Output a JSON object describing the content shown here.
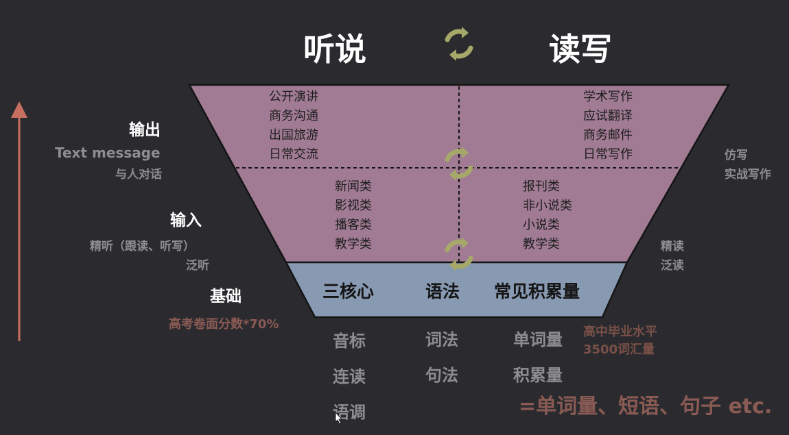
{
  "header": {
    "left": "听说",
    "right": "读写"
  },
  "left_labels": {
    "output_title": "输出",
    "output_sub1": "Text message",
    "output_sub2": "与人对话",
    "input_title": "输入",
    "input_sub1": "精听（跟读、听写）",
    "input_sub2": "泛听",
    "base_title": "基础",
    "base_sub": "高考卷面分数*70%"
  },
  "right_labels": {
    "output_note1": "仿写",
    "output_note2": "实战写作",
    "input_note1": "精读",
    "input_note2": "泛读"
  },
  "output_row": {
    "left": [
      "公开演讲",
      "商务沟通",
      "出国旅游",
      "日常交流"
    ],
    "right": [
      "学术写作",
      "应试翻译",
      "商务邮件",
      "日常写作"
    ]
  },
  "input_row": {
    "left": [
      "新闻类",
      "影视类",
      "播客类",
      "教学类"
    ],
    "right": [
      "报刊类",
      "非小说类",
      "小说类",
      "教学类"
    ]
  },
  "base_row": {
    "col1": "三核心",
    "col2": "语法",
    "col3": "常见积累量"
  },
  "foundation": {
    "col1": [
      "音标",
      "连读",
      "语调"
    ],
    "col2": [
      "词法",
      "句法"
    ],
    "col3": [
      "单词量",
      "积累量"
    ],
    "col3_note1": "高中毕业水平",
    "col3_note2": "3500词汇量",
    "formula": "=单词量、短语、句子 etc."
  },
  "colors": {
    "background": "#2b2b2f",
    "upper_fill": "#a07b93",
    "base_fill": "#8899b2",
    "cycle_icon": "#a6a869",
    "arrow": "#c8705f"
  }
}
